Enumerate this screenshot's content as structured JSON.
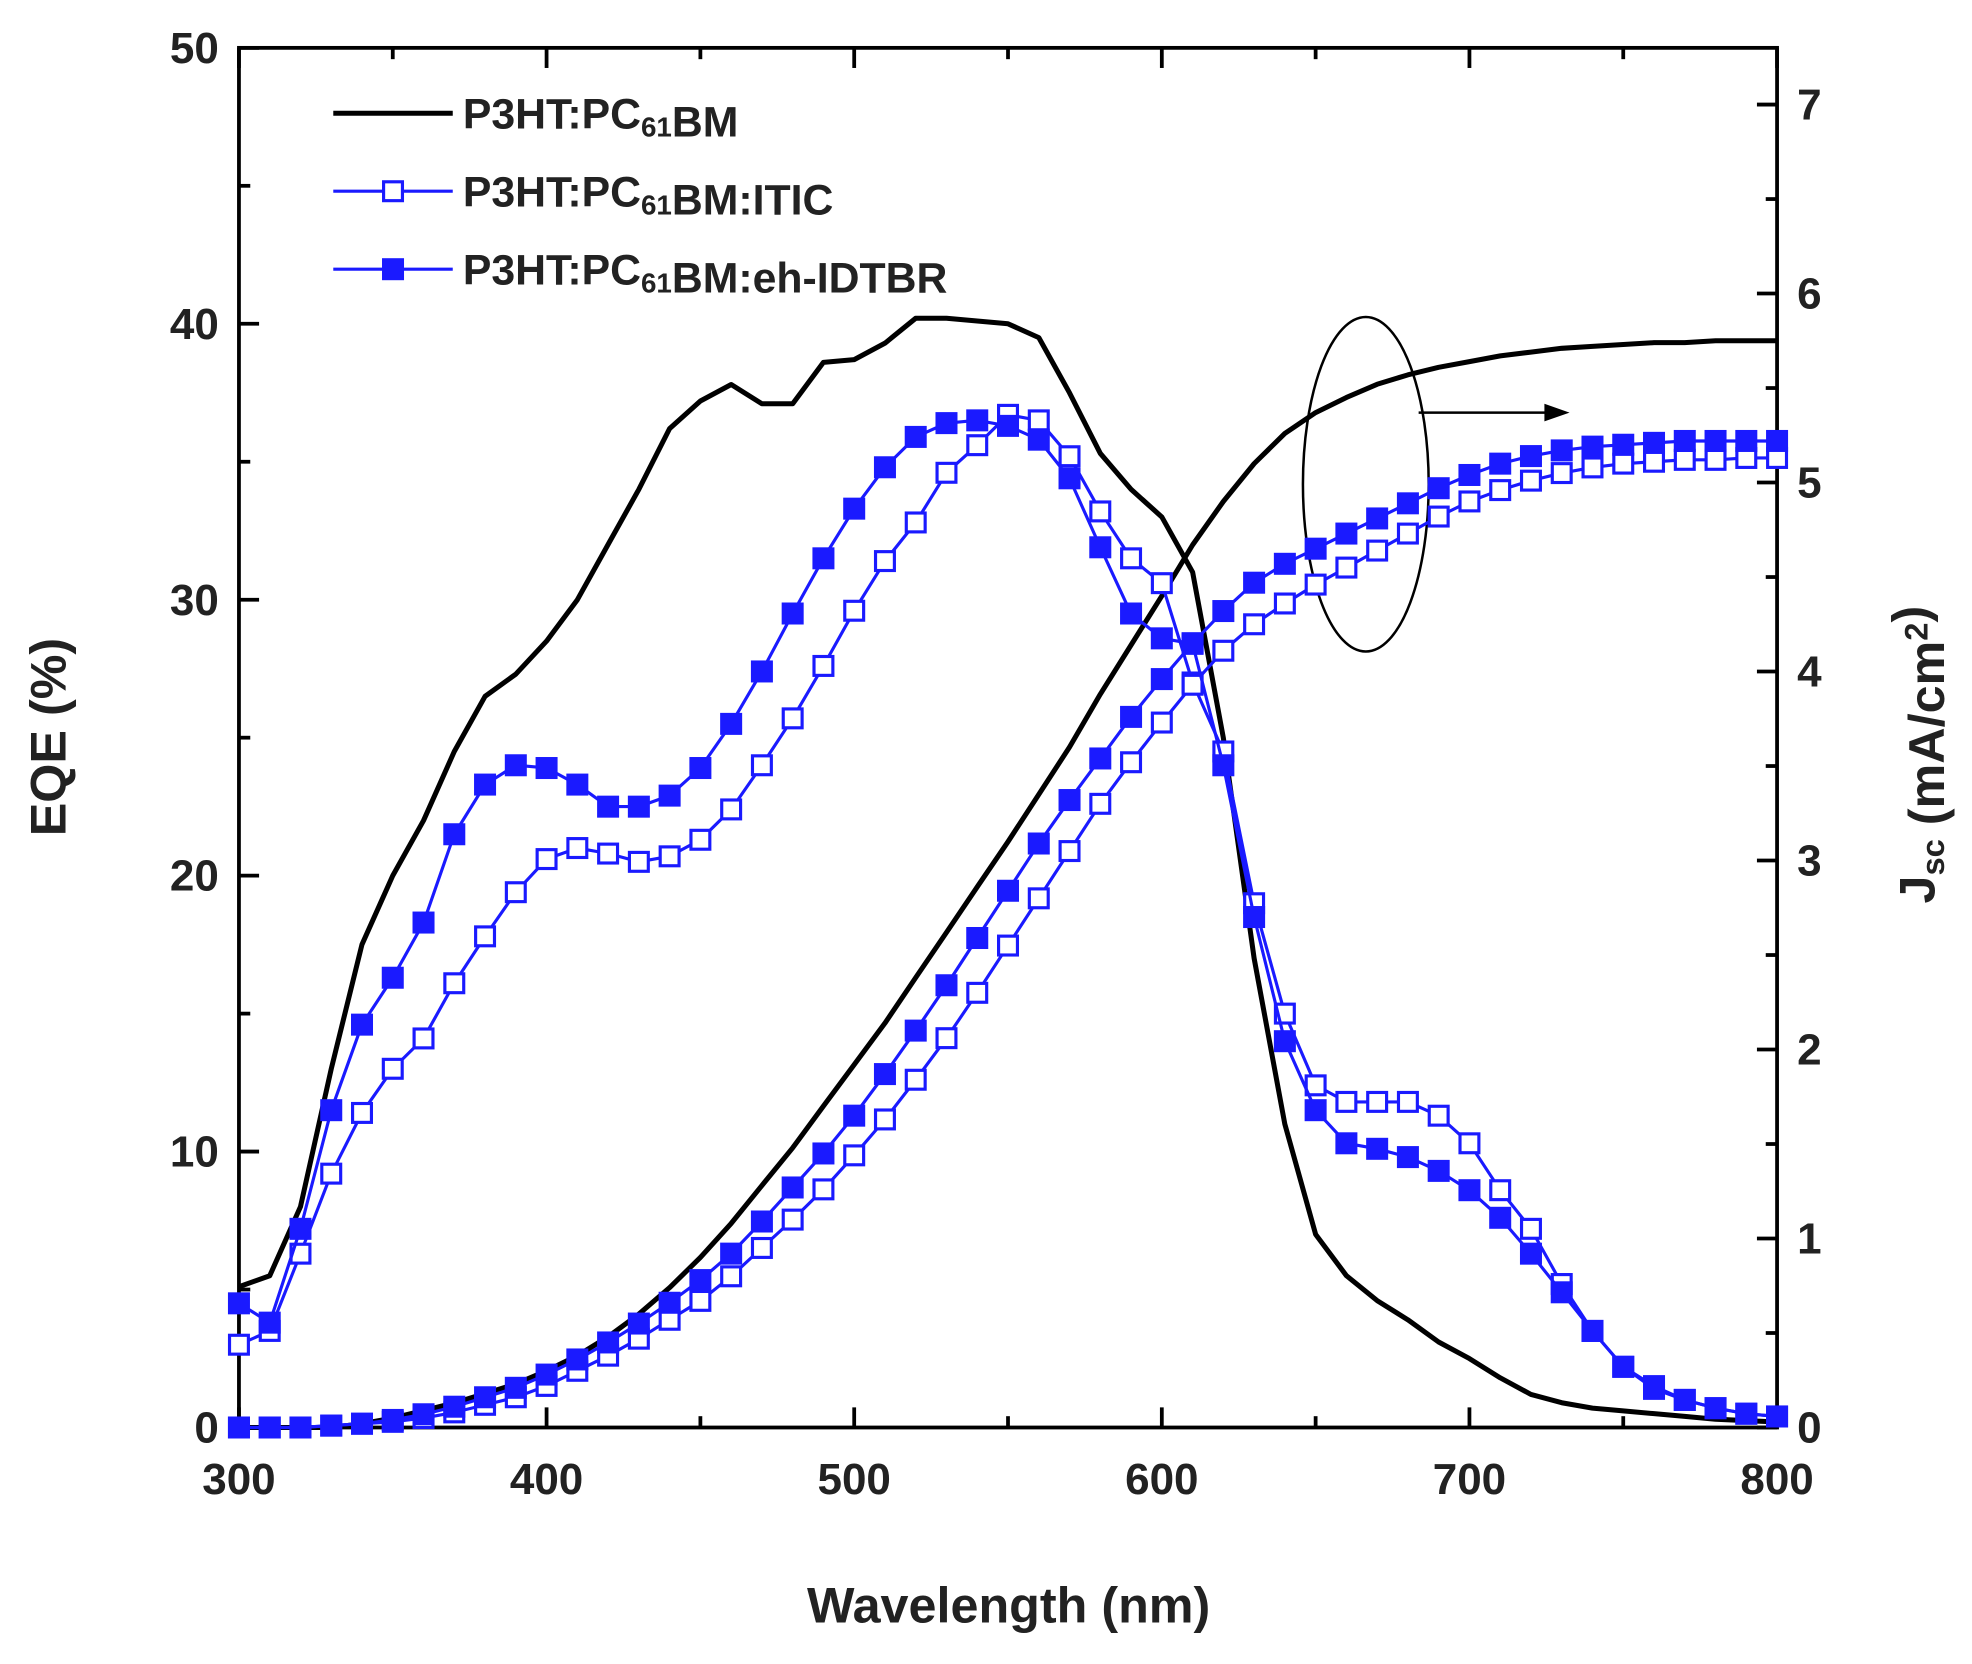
{
  "chart_data": {
    "type": "line",
    "x_label": "Wavelength (nm)",
    "y_label": "EQE (%)",
    "y2_label": "Jsc (mA/cm2)",
    "x": [
      300,
      310,
      320,
      330,
      340,
      350,
      360,
      370,
      380,
      390,
      400,
      410,
      420,
      430,
      440,
      450,
      460,
      470,
      480,
      490,
      500,
      510,
      520,
      530,
      540,
      550,
      560,
      570,
      580,
      590,
      600,
      610,
      620,
      630,
      640,
      650,
      660,
      670,
      680,
      690,
      700,
      710,
      720,
      730,
      740,
      750,
      760,
      770,
      780,
      790,
      800
    ],
    "xlim": [
      300,
      800
    ],
    "xticks": [
      300,
      400,
      500,
      600,
      700,
      800
    ],
    "xminor": [
      350,
      450,
      550,
      650,
      750
    ],
    "ylim": [
      0,
      50
    ],
    "yticks": [
      0,
      10,
      20,
      30,
      40,
      50
    ],
    "yminor": [
      5,
      15,
      25,
      35,
      45
    ],
    "y2lim": [
      0,
      7.3
    ],
    "y2ticks": [
      0,
      1,
      2,
      3,
      4,
      5,
      6,
      7
    ],
    "y2minor": [
      0.5,
      1.5,
      2.5,
      3.5,
      4.5,
      5.5,
      6.5
    ],
    "series": [
      {
        "name": "P3HT:PC61BM",
        "color": "#000000",
        "marker": "none",
        "values": [
          5.1,
          5.5,
          8,
          13,
          17.5,
          20,
          22,
          24.5,
          26.5,
          27.3,
          28.5,
          30,
          32,
          34,
          36.2,
          37.2,
          37.8,
          37.1,
          37.1,
          38.6,
          38.7,
          39.3,
          40.2,
          40.2,
          40.1,
          40,
          39.5,
          37.5,
          35.3,
          34,
          33,
          31,
          25,
          17,
          11,
          7,
          5.5,
          4.6,
          3.9,
          3.1,
          2.5,
          1.8,
          1.2,
          0.9,
          0.7,
          0.6,
          0.5,
          0.4,
          0.3,
          0.25,
          0.2
        ],
        "y2_values": [
          0,
          0,
          0,
          0,
          0.02,
          0.05,
          0.09,
          0.13,
          0.18,
          0.23,
          0.3,
          0.38,
          0.48,
          0.6,
          0.74,
          0.9,
          1.08,
          1.28,
          1.48,
          1.7,
          1.92,
          2.14,
          2.38,
          2.62,
          2.86,
          3.1,
          3.35,
          3.6,
          3.88,
          4.14,
          4.4,
          4.67,
          4.9,
          5.1,
          5.26,
          5.37,
          5.45,
          5.52,
          5.57,
          5.61,
          5.64,
          5.67,
          5.69,
          5.71,
          5.72,
          5.73,
          5.74,
          5.74,
          5.75,
          5.75,
          5.75
        ]
      },
      {
        "name": "P3HT:PC61BM:ITIC",
        "color": "#1a1aff",
        "marker": "open-square",
        "values": [
          3.0,
          3.5,
          6.3,
          9.2,
          11.4,
          13,
          14.1,
          16.1,
          17.8,
          19.4,
          20.6,
          21,
          20.8,
          20.5,
          20.7,
          21.3,
          22.4,
          24,
          25.7,
          27.6,
          29.6,
          31.4,
          32.8,
          34.6,
          35.6,
          36.7,
          36.5,
          35.2,
          33.2,
          31.5,
          30.6,
          27,
          24.5,
          19,
          15,
          12.4,
          11.8,
          11.8,
          11.8,
          11.3,
          10.3,
          8.6,
          7.2,
          5.2,
          3.5,
          2.2,
          1.4,
          1,
          0.7,
          0.5,
          0.4
        ],
        "y2_values": [
          0,
          0,
          0,
          0.01,
          0.02,
          0.03,
          0.05,
          0.08,
          0.12,
          0.16,
          0.22,
          0.3,
          0.38,
          0.47,
          0.57,
          0.67,
          0.8,
          0.95,
          1.1,
          1.26,
          1.44,
          1.63,
          1.84,
          2.06,
          2.3,
          2.55,
          2.8,
          3.05,
          3.3,
          3.52,
          3.73,
          3.93,
          4.11,
          4.25,
          4.36,
          4.46,
          4.55,
          4.64,
          4.73,
          4.82,
          4.9,
          4.96,
          5.01,
          5.05,
          5.08,
          5.1,
          5.11,
          5.12,
          5.12,
          5.13,
          5.13
        ]
      },
      {
        "name": "P3HT:PC61BM:eh-IDTBR",
        "color": "#1a1aff",
        "marker": "filled-square",
        "values": [
          4.5,
          3.8,
          7.2,
          11.5,
          14.6,
          16.3,
          18.3,
          21.5,
          23.3,
          24,
          23.9,
          23.3,
          22.5,
          22.5,
          22.9,
          23.9,
          25.5,
          27.4,
          29.5,
          31.5,
          33.3,
          34.8,
          35.9,
          36.4,
          36.5,
          36.3,
          35.8,
          34.4,
          31.9,
          29.5,
          28.6,
          28.4,
          24,
          18.5,
          14,
          11.5,
          10.3,
          10.1,
          9.8,
          9.3,
          8.6,
          7.6,
          6.3,
          4.9,
          3.5,
          2.2,
          1.5,
          1,
          0.7,
          0.5,
          0.4
        ],
        "y2_values": [
          0,
          0,
          0,
          0.01,
          0.02,
          0.04,
          0.07,
          0.11,
          0.16,
          0.21,
          0.28,
          0.36,
          0.45,
          0.55,
          0.66,
          0.78,
          0.92,
          1.09,
          1.27,
          1.45,
          1.65,
          1.87,
          2.1,
          2.34,
          2.59,
          2.84,
          3.09,
          3.32,
          3.54,
          3.76,
          3.96,
          4.15,
          4.32,
          4.47,
          4.57,
          4.65,
          4.73,
          4.81,
          4.89,
          4.97,
          5.04,
          5.1,
          5.14,
          5.17,
          5.19,
          5.2,
          5.21,
          5.22,
          5.22,
          5.22,
          5.22
        ]
      }
    ]
  }
}
